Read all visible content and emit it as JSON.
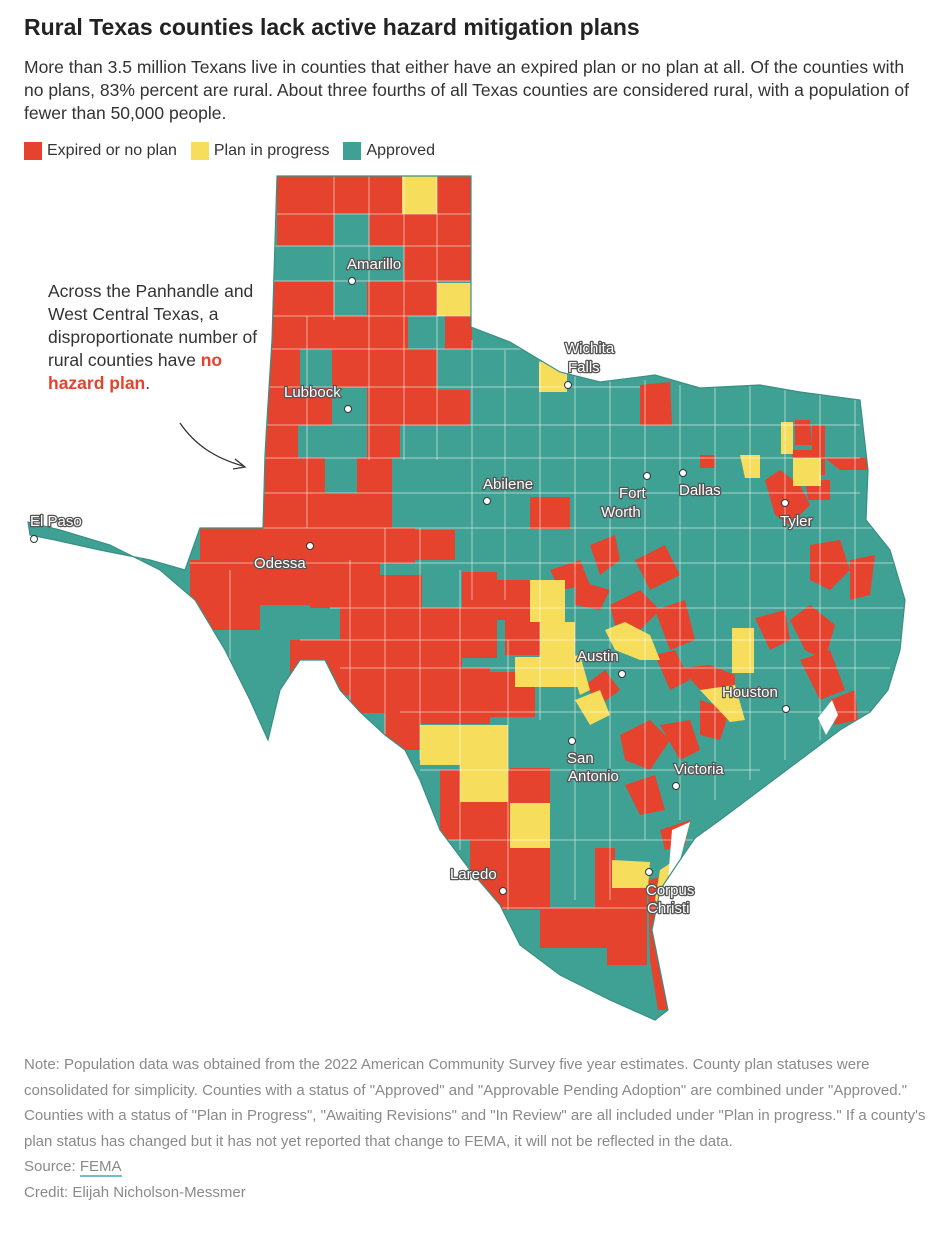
{
  "title": "Rural Texas counties lack active hazard mitigation plans",
  "subtitle": "More than 3.5 million Texans live in counties that either have an expired plan or no plan at all. Of the counties with no plans, 83% percent are rural. About three fourths of all Texas counties are considered rural, with a population of fewer than 50,000 people.",
  "legend": [
    {
      "label": "Expired or no plan",
      "color": "#e5432d"
    },
    {
      "label": "Plan in progress",
      "color": "#f7dd5c"
    },
    {
      "label": "Approved",
      "color": "#3fa193"
    }
  ],
  "annotation": {
    "text_before": "Across the Panhandle and West Central Texas, a disproportionate number of rural counties have ",
    "highlight": "no hazard plan",
    "text_after": "."
  },
  "cities": [
    {
      "name": "Amarillo",
      "lines": [
        "Amarillo"
      ]
    },
    {
      "name": "Lubbock",
      "lines": [
        "Lubbock"
      ]
    },
    {
      "name": "Wichita Falls",
      "lines": [
        "Wichita",
        "Falls"
      ]
    },
    {
      "name": "Abilene",
      "lines": [
        "Abilene"
      ]
    },
    {
      "name": "Fort Worth",
      "lines": [
        "Fort",
        "Worth"
      ]
    },
    {
      "name": "Dallas",
      "lines": [
        "Dallas"
      ]
    },
    {
      "name": "Tyler",
      "lines": [
        "Tyler"
      ]
    },
    {
      "name": "El Paso",
      "lines": [
        "El Paso"
      ]
    },
    {
      "name": "Odessa",
      "lines": [
        "Odessa"
      ]
    },
    {
      "name": "Austin",
      "lines": [
        "Austin"
      ]
    },
    {
      "name": "Houston",
      "lines": [
        "Houston"
      ]
    },
    {
      "name": "San Antonio",
      "lines": [
        "San",
        "Antonio"
      ]
    },
    {
      "name": "Victoria",
      "lines": [
        "Victoria"
      ]
    },
    {
      "name": "Laredo",
      "lines": [
        "Laredo"
      ]
    },
    {
      "name": "Corpus Christi",
      "lines": [
        "Corpus",
        "Christi"
      ]
    }
  ],
  "notes": "Note: Population data was obtained from the 2022 American Community Survey five year estimates. County plan statuses were consolidated for simplicity. Counties with a status of \"Approved\" and \"Approvable Pending Adoption\" are combined under \"Approved.\" Counties with a status of \"Plan in Progress\", \"Awaiting Revisions\" and \"In Review\" are all included under \"Plan in progress.\" If a county's plan status has changed but it has not yet reported that change to FEMA, it will not be reflected in the data.",
  "source": {
    "label": "Source:",
    "link_text": "FEMA"
  },
  "credit": "Credit: Elijah Nicholson-Messmer"
}
